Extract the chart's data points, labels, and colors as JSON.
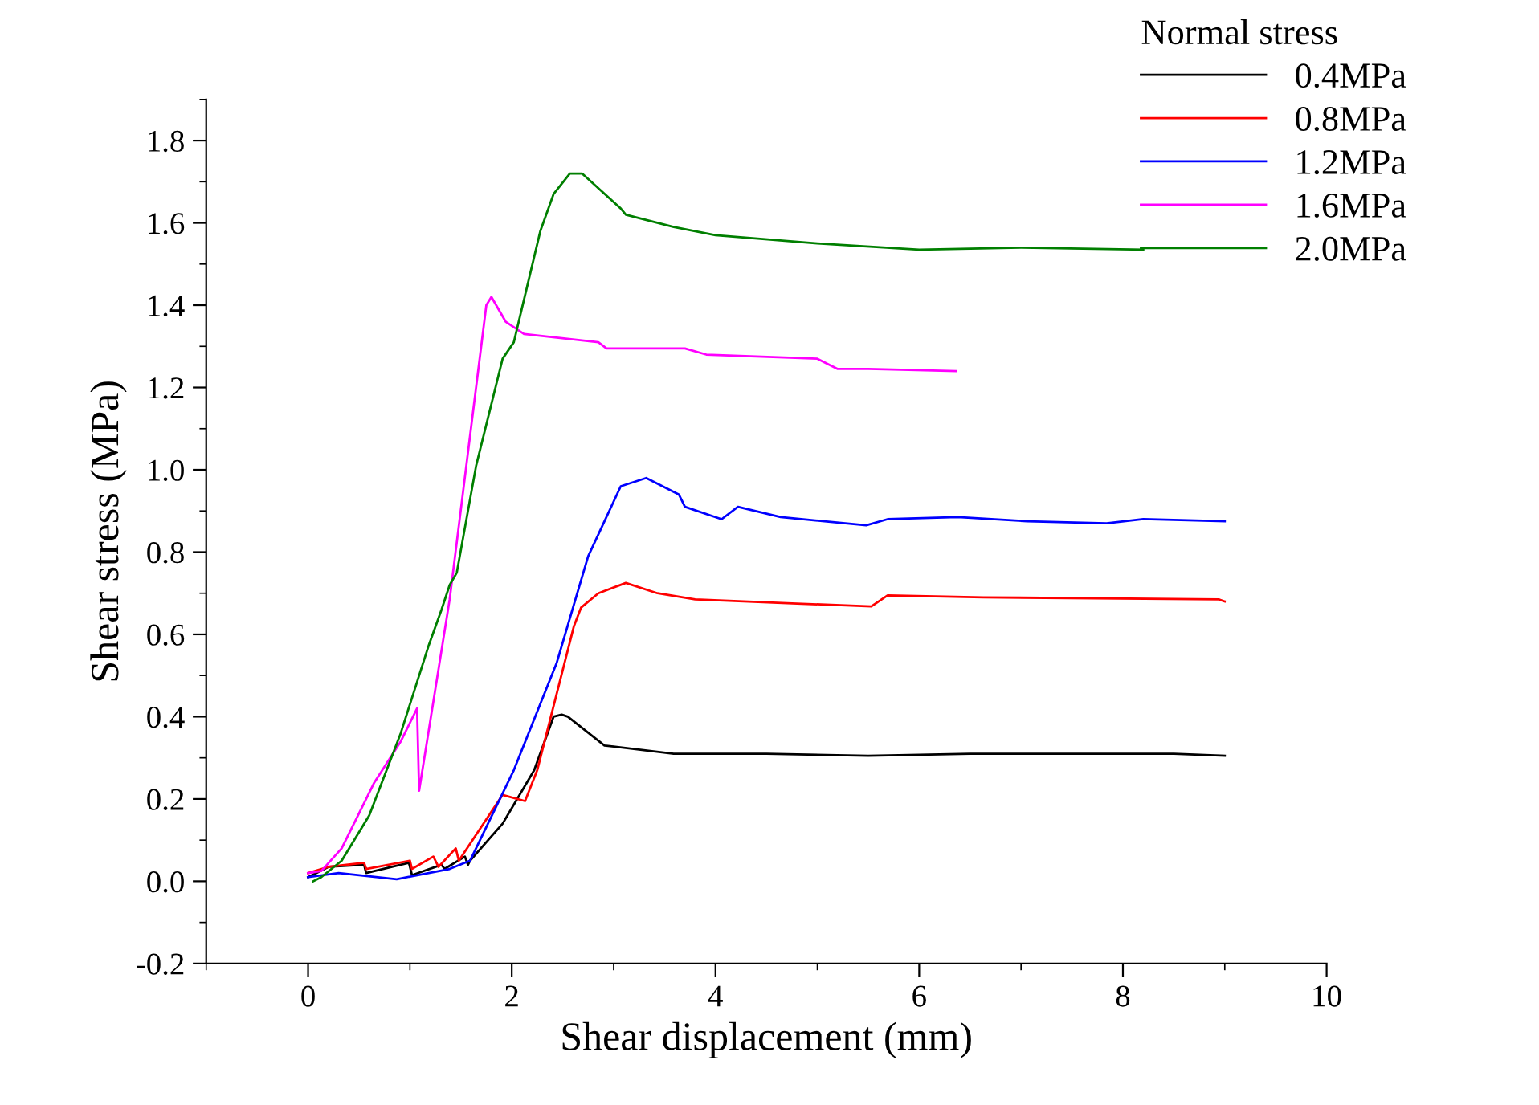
{
  "chart_data": {
    "type": "line",
    "xlabel": "Shear displacement (mm)",
    "ylabel": "Shear stress (MPa)",
    "legend_title": "Normal stress",
    "legend": "top right",
    "grid": false,
    "marker": "none",
    "line_style": "solid",
    "xlim": [
      -1,
      10
    ],
    "xticks": [
      0,
      2,
      4,
      6,
      8,
      10
    ],
    "ylim": [
      -0.2,
      1.9
    ],
    "yticks": [
      -0.2,
      {
        "value": 0,
        "label": "0.0"
      },
      0.2,
      0.4,
      0.6,
      0.8,
      {
        "value": 1,
        "label": "1.0"
      },
      1.2,
      1.4,
      1.6,
      1.8
    ],
    "series": [
      {
        "name": "0.4MPa",
        "color": "#000000",
        "x": [
          0,
          0.2,
          0.55,
          0.57,
          0.99,
          1.02,
          1.31,
          1.34,
          1.54,
          1.57,
          1.59,
          1.91,
          2.22,
          2.41,
          2.49,
          2.55,
          2.91,
          3.59,
          4.5,
          5.5,
          6.5,
          7.5,
          8.5,
          9.0
        ],
        "values": [
          0.01,
          0.035,
          0.04,
          0.02,
          0.045,
          0.015,
          0.04,
          0.03,
          0.06,
          0.04,
          0.05,
          0.14,
          0.27,
          0.4,
          0.405,
          0.4,
          0.33,
          0.31,
          0.31,
          0.305,
          0.31,
          0.31,
          0.31,
          0.305
        ]
      },
      {
        "name": "0.8MPa",
        "color": "#ff0000",
        "x": [
          0,
          0.2,
          0.55,
          0.57,
          1.0,
          1.02,
          1.23,
          1.28,
          1.45,
          1.48,
          1.91,
          2.13,
          2.25,
          2.61,
          2.68,
          2.85,
          3.12,
          3.43,
          3.8,
          4.8,
          5.53,
          5.69,
          6.63,
          8.94,
          9.0
        ],
        "values": [
          0.02,
          0.035,
          0.045,
          0.03,
          0.05,
          0.03,
          0.06,
          0.035,
          0.08,
          0.05,
          0.21,
          0.195,
          0.27,
          0.62,
          0.665,
          0.7,
          0.725,
          0.7,
          0.685,
          0.675,
          0.668,
          0.695,
          0.69,
          0.685,
          0.68
        ]
      },
      {
        "name": "1.2MPa",
        "color": "#0000ff",
        "x": [
          0,
          0.3,
          0.87,
          1.39,
          1.59,
          2.02,
          2.44,
          2.75,
          3.07,
          3.32,
          3.64,
          3.7,
          4.06,
          4.22,
          4.64,
          5.48,
          5.69,
          6.38,
          7.06,
          7.84,
          8.2,
          9.0
        ],
        "values": [
          0.01,
          0.02,
          0.005,
          0.03,
          0.05,
          0.27,
          0.53,
          0.79,
          0.96,
          0.98,
          0.94,
          0.91,
          0.88,
          0.91,
          0.885,
          0.865,
          0.88,
          0.885,
          0.875,
          0.87,
          0.88,
          0.875
        ]
      },
      {
        "name": "1.6MPa",
        "color": "#ff00ff",
        "x": [
          0,
          0.13,
          0.33,
          0.65,
          0.91,
          1.07,
          1.09,
          1.39,
          1.75,
          1.8,
          1.94,
          2.12,
          2.85,
          2.93,
          3.7,
          3.91,
          5.0,
          5.2,
          5.5,
          6.36
        ],
        "values": [
          0.02,
          0.025,
          0.08,
          0.24,
          0.34,
          0.42,
          0.22,
          0.685,
          1.4,
          1.42,
          1.36,
          1.33,
          1.31,
          1.295,
          1.295,
          1.28,
          1.27,
          1.245,
          1.245,
          1.24
        ]
      },
      {
        "name": "2.0MPa",
        "color": "#007f00",
        "x": [
          0.05,
          0.13,
          0.33,
          0.6,
          0.91,
          1.18,
          1.31,
          1.39,
          1.46,
          1.65,
          1.91,
          2.02,
          2.28,
          2.41,
          2.57,
          2.69,
          3.07,
          3.12,
          3.59,
          4.0,
          5.0,
          6.0,
          7.0,
          8.2
        ],
        "values": [
          0.0,
          0.01,
          0.05,
          0.16,
          0.36,
          0.57,
          0.66,
          0.72,
          0.75,
          1.01,
          1.27,
          1.31,
          1.58,
          1.67,
          1.72,
          1.72,
          1.635,
          1.62,
          1.59,
          1.57,
          1.55,
          1.535,
          1.54,
          1.535
        ]
      }
    ]
  }
}
